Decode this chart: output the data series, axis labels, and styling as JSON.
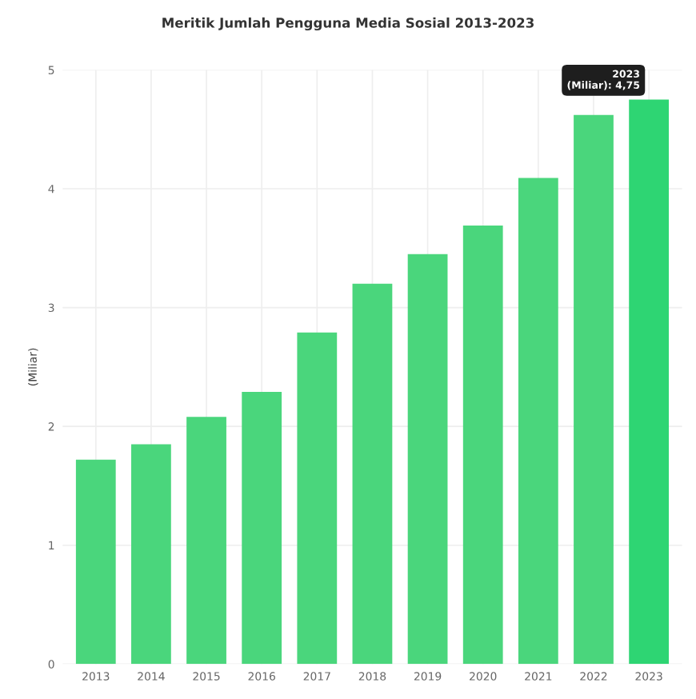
{
  "chart_data": {
    "type": "bar",
    "title": "Meritik Jumlah Pengguna Media Sosial 2013-2023",
    "ylabel": "(Miliar)",
    "categories": [
      "2013",
      "2014",
      "2015",
      "2016",
      "2017",
      "2018",
      "2019",
      "2020",
      "2021",
      "2022",
      "2023"
    ],
    "values": [
      1.72,
      1.85,
      2.08,
      2.29,
      2.79,
      3.2,
      3.45,
      3.69,
      4.09,
      4.62,
      4.75
    ],
    "colors": [
      "#4ad67c",
      "#4ad67c",
      "#4ad67c",
      "#4ad67c",
      "#4ad67c",
      "#4ad67c",
      "#4ad67c",
      "#4ad67c",
      "#4ad67c",
      "#4ad67c",
      "#2ed573"
    ],
    "ylim": [
      0,
      5
    ],
    "yticks": [
      0,
      1,
      2,
      3,
      4,
      5
    ],
    "grid": true,
    "annotations": [
      {
        "text": "2023\n(Miliar): 4,75",
        "x": "2023",
        "y": 4.75
      }
    ]
  }
}
